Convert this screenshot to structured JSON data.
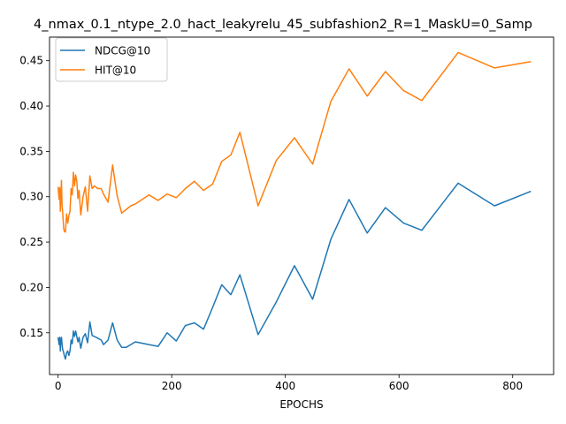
{
  "chart_data": {
    "type": "line",
    "title": "4_nmax_0.1_ntype_2.0_hact_leakyrelu_45_subfashion2_R=1_MaskU=0_Samp",
    "xlabel": "EPOCHS",
    "ylabel": "",
    "xlim": [
      -15,
      872
    ],
    "ylim": [
      0.104,
      0.476
    ],
    "xticks": [
      0,
      200,
      400,
      600,
      800
    ],
    "yticks": [
      0.15,
      0.2,
      0.25,
      0.3,
      0.35,
      0.4,
      0.45
    ],
    "grid": false,
    "legend": "top-left",
    "series": [
      {
        "name": "NDCG@10",
        "color": "#1f77b4",
        "x": [
          0,
          2,
          3,
          4,
          5,
          6,
          7,
          8,
          9,
          10,
          11,
          13,
          15,
          17,
          19,
          21,
          23,
          25,
          27,
          29,
          31,
          33,
          35,
          37,
          40,
          44,
          48,
          52,
          56,
          60,
          64,
          70,
          76,
          80,
          88,
          96,
          104,
          112,
          120,
          128,
          136,
          160,
          176,
          192,
          208,
          224,
          240,
          256,
          272,
          288,
          304,
          320,
          352,
          384,
          416,
          448,
          480,
          512,
          544,
          576,
          608,
          640,
          704,
          768,
          832
        ],
        "y": [
          0.145,
          0.137,
          0.145,
          0.13,
          0.142,
          0.145,
          0.138,
          0.132,
          0.13,
          0.128,
          0.125,
          0.121,
          0.128,
          0.13,
          0.125,
          0.13,
          0.142,
          0.138,
          0.152,
          0.146,
          0.152,
          0.146,
          0.14,
          0.145,
          0.133,
          0.145,
          0.149,
          0.139,
          0.162,
          0.147,
          0.146,
          0.144,
          0.142,
          0.137,
          0.142,
          0.161,
          0.142,
          0.134,
          0.134,
          0.137,
          0.14,
          0.137,
          0.135,
          0.15,
          0.141,
          0.158,
          0.161,
          0.154,
          0.178,
          0.203,
          0.192,
          0.214,
          0.148,
          0.184,
          0.224,
          0.187,
          0.253,
          0.297,
          0.26,
          0.288,
          0.271,
          0.263,
          0.315,
          0.29,
          0.306
        ]
      },
      {
        "name": "HIT@10",
        "color": "#ff7f0e",
        "x": [
          0,
          2,
          3,
          4,
          5,
          6,
          7,
          8,
          9,
          10,
          11,
          13,
          15,
          17,
          19,
          21,
          23,
          25,
          27,
          29,
          31,
          33,
          35,
          37,
          40,
          44,
          48,
          52,
          56,
          60,
          64,
          70,
          76,
          80,
          88,
          96,
          104,
          112,
          120,
          128,
          136,
          160,
          176,
          192,
          208,
          224,
          240,
          256,
          272,
          288,
          304,
          320,
          352,
          384,
          416,
          448,
          480,
          512,
          544,
          576,
          608,
          640,
          704,
          768,
          832
        ],
        "y": [
          0.311,
          0.297,
          0.31,
          0.284,
          0.3,
          0.318,
          0.291,
          0.284,
          0.274,
          0.265,
          0.262,
          0.261,
          0.281,
          0.271,
          0.279,
          0.284,
          0.309,
          0.302,
          0.327,
          0.312,
          0.324,
          0.317,
          0.298,
          0.307,
          0.28,
          0.3,
          0.311,
          0.284,
          0.323,
          0.309,
          0.312,
          0.309,
          0.309,
          0.303,
          0.294,
          0.335,
          0.301,
          0.282,
          0.286,
          0.29,
          0.292,
          0.302,
          0.296,
          0.303,
          0.299,
          0.309,
          0.317,
          0.307,
          0.314,
          0.339,
          0.346,
          0.371,
          0.29,
          0.34,
          0.365,
          0.336,
          0.405,
          0.441,
          0.411,
          0.438,
          0.417,
          0.406,
          0.459,
          0.442,
          0.449
        ]
      }
    ]
  }
}
